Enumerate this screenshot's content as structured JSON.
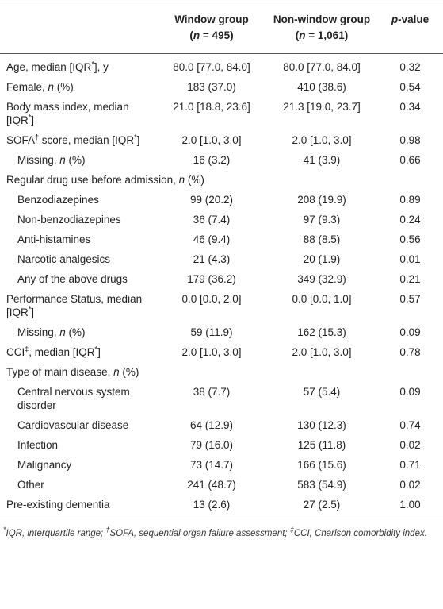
{
  "table": {
    "header": {
      "columns": [
        [],
        [
          "Window group"
        ],
        [
          "Non-window group"
        ],
        [
          {
            "em": "p"
          },
          "-value"
        ]
      ],
      "subcolumns": [
        [],
        [
          "(",
          {
            "em": "n"
          },
          " = 495)"
        ],
        [
          "(",
          {
            "em": "n"
          },
          " = 1,061)"
        ],
        []
      ]
    },
    "rows": [
      {
        "label": [
          "Age, median [IQR",
          {
            "sup": "*"
          },
          "], y"
        ],
        "cells": [
          "80.0 [77.0, 84.0]",
          "80.0 [77.0, 84.0]",
          "0.32"
        ]
      },
      {
        "label": [
          "Female, ",
          {
            "em": "n"
          },
          " (%)"
        ],
        "cells": [
          "183 (37.0)",
          "410 (38.6)",
          "0.54"
        ]
      },
      {
        "label": [
          "Body mass index, median [IQR",
          {
            "sup": "*"
          },
          "]"
        ],
        "cells": [
          "21.0 [18.8, 23.6]",
          "21.3 [19.0, 23.7]",
          "0.34"
        ]
      },
      {
        "label": [
          "SOFA",
          {
            "sup": "†"
          },
          " score, median [IQR",
          {
            "sup": "*"
          },
          "]"
        ],
        "cells": [
          "2.0 [1.0, 3.0]",
          "2.0 [1.0, 3.0]",
          "0.98"
        ]
      },
      {
        "label": [
          "Missing, ",
          {
            "em": "n"
          },
          " (%)"
        ],
        "indent": true,
        "cells": [
          "16 (3.2)",
          "41 (3.9)",
          "0.66"
        ]
      },
      {
        "label": [
          "Regular drug use before admission, ",
          {
            "em": "n"
          },
          " (%)"
        ],
        "section": true
      },
      {
        "label": [
          "Benzodiazepines"
        ],
        "indent": true,
        "cells": [
          "99 (20.2)",
          "208 (19.9)",
          "0.89"
        ]
      },
      {
        "label": [
          "Non-benzodiazepines"
        ],
        "indent": true,
        "cells": [
          "36 (7.4)",
          "97 (9.3)",
          "0.24"
        ]
      },
      {
        "label": [
          "Anti-histamines"
        ],
        "indent": true,
        "cells": [
          "46 (9.4)",
          "88 (8.5)",
          "0.56"
        ]
      },
      {
        "label": [
          "Narcotic analgesics"
        ],
        "indent": true,
        "cells": [
          "21 (4.3)",
          "20 (1.9)",
          "0.01"
        ]
      },
      {
        "label": [
          "Any of the above drugs"
        ],
        "indent": true,
        "cells": [
          "179 (36.2)",
          "349 (32.9)",
          "0.21"
        ]
      },
      {
        "label": [
          "Performance Status, median [IQR",
          {
            "sup": "*"
          },
          "]"
        ],
        "cells": [
          "0.0 [0.0, 2.0]",
          "0.0 [0.0, 1.0]",
          "0.57"
        ]
      },
      {
        "label": [
          "Missing, ",
          {
            "em": "n"
          },
          " (%)"
        ],
        "indent": true,
        "cells": [
          "59 (11.9)",
          "162 (15.3)",
          "0.09"
        ]
      },
      {
        "label": [
          "CCI",
          {
            "sup": "‡"
          },
          ", median [IQR",
          {
            "sup": "*"
          },
          "]"
        ],
        "cells": [
          "2.0 [1.0, 3.0]",
          "2.0 [1.0, 3.0]",
          "0.78"
        ]
      },
      {
        "label": [
          "Type of main disease, ",
          {
            "em": "n"
          },
          " (%)"
        ],
        "section": true
      },
      {
        "label": [
          "Central nervous system disorder"
        ],
        "indent": true,
        "cells": [
          "38 (7.7)",
          "57 (5.4)",
          "0.09"
        ]
      },
      {
        "label": [
          "Cardiovascular disease"
        ],
        "indent": true,
        "cells": [
          "64 (12.9)",
          "130 (12.3)",
          "0.74"
        ]
      },
      {
        "label": [
          "Infection"
        ],
        "indent": true,
        "cells": [
          "79 (16.0)",
          "125 (11.8)",
          "0.02"
        ]
      },
      {
        "label": [
          "Malignancy"
        ],
        "indent": true,
        "cells": [
          "73 (14.7)",
          "166 (15.6)",
          "0.71"
        ]
      },
      {
        "label": [
          "Other"
        ],
        "indent": true,
        "cells": [
          "241 (48.7)",
          "583 (54.9)",
          "0.02"
        ]
      },
      {
        "label": [
          "Pre-existing dementia"
        ],
        "cells": [
          "13 (2.6)",
          "27 (2.5)",
          "1.00"
        ]
      }
    ],
    "footnote": [
      {
        "sup": "*"
      },
      {
        "em": "IQR, interquartile range; "
      },
      {
        "sup": "†"
      },
      {
        "em": "SOFA, sequential organ failure assessment; "
      },
      {
        "sup": "‡"
      },
      {
        "em": "CCI, Charlson comorbidity index."
      }
    ]
  }
}
